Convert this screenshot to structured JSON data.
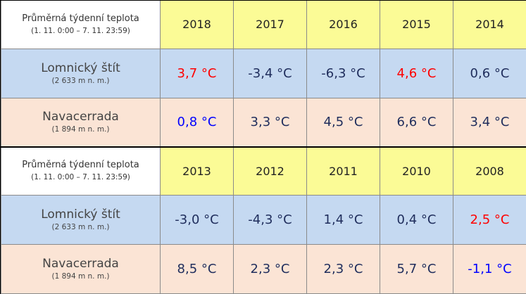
{
  "blocks": [
    {
      "header": {
        "title": "Průměrná týdenní teplota",
        "period": "(1. 11. 0:00 – 7. 11. 23:59)",
        "years": [
          "2018",
          "2017",
          "2016",
          "2015",
          "2014"
        ]
      },
      "rows": [
        {
          "station": "Lomnický štít",
          "altitude": "(2 633 m n. m.)",
          "values": [
            "3,7 °C",
            "-3,4 °C",
            "-6,3 °C",
            "4,6 °C",
            "0,6 °C"
          ],
          "highlight": [
            "red",
            "",
            "",
            "red",
            ""
          ]
        },
        {
          "station": "Navacerrada",
          "altitude": "(1 894 m n. m.)",
          "values": [
            "0,8 °C",
            "3,3 °C",
            "4,5 °C",
            "6,6 °C",
            "3,4 °C"
          ],
          "highlight": [
            "blue",
            "",
            "",
            "",
            ""
          ]
        }
      ]
    },
    {
      "header": {
        "title": "Průměrná týdenní teplota",
        "period": "(1. 11. 0:00 – 7. 11. 23:59)",
        "years": [
          "2013",
          "2012",
          "2011",
          "2010",
          "2008"
        ]
      },
      "rows": [
        {
          "station": "Lomnický štít",
          "altitude": "(2 633 m n. m.)",
          "values": [
            "-3,0 °C",
            "-4,3 °C",
            "1,4 °C",
            "0,4 °C",
            "2,5 °C"
          ],
          "highlight": [
            "",
            "",
            "",
            "",
            "red"
          ]
        },
        {
          "station": "Navacerrada",
          "altitude": "(1 894 m n. m.)",
          "values": [
            "8,5 °C",
            "2,3 °C",
            "2,3 °C",
            "5,7 °C",
            "-1,1 °C"
          ],
          "highlight": [
            "",
            "",
            "",
            "",
            "blue"
          ]
        }
      ]
    }
  ],
  "colors": {
    "header_year_bg": "#fbfb96",
    "row_lomnicky_bg": "#c5d9f1",
    "row_navacerrada_bg": "#fbe4d5",
    "value_default": "#1f2d5c",
    "value_warmer": "#ff0000",
    "value_colder": "#0000ff"
  }
}
